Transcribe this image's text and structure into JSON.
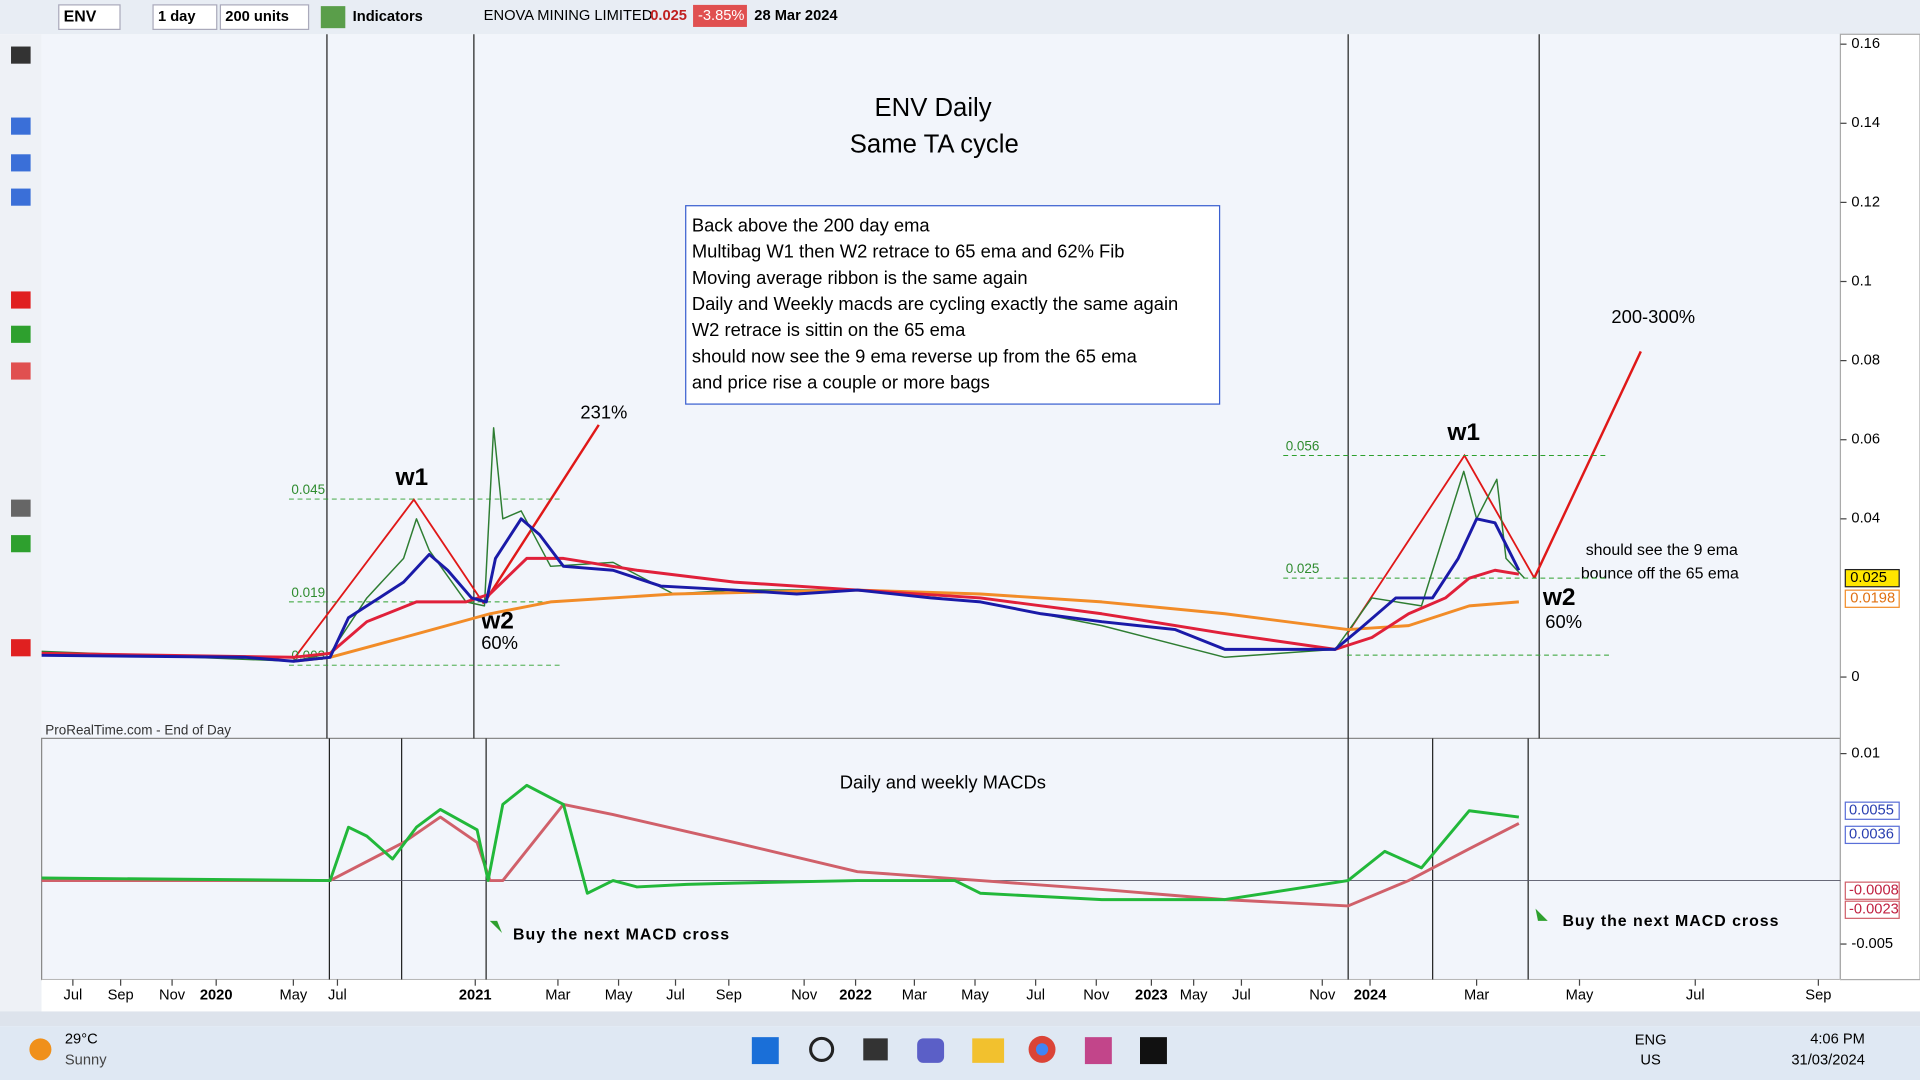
{
  "toolbar": {
    "symbol": "ENV",
    "timeframe": "1 day",
    "units": "200 units",
    "indicators": "Indicators",
    "name": "ENOVA MINING LIMITED",
    "price": "0.025",
    "change": "-3.85%",
    "date": "28 Mar 2024"
  },
  "watermark": "ProRealTime.com - End of Day",
  "chart_data": [
    {
      "type": "line",
      "title": "ENV Daily",
      "subtitle": "Same TA cycle",
      "xlim": [
        0,
        979
      ],
      "xticks": [
        {
          "value": 17,
          "label": "Jul"
        },
        {
          "value": 43,
          "label": "Sep"
        },
        {
          "value": 71,
          "label": "Nov"
        },
        {
          "value": 95,
          "label": "2020"
        },
        {
          "value": 137,
          "label": "May"
        },
        {
          "value": 161,
          "label": "Jul"
        },
        {
          "value": 236,
          "label": "2021"
        },
        {
          "value": 281,
          "label": "Mar"
        },
        {
          "value": 314,
          "label": "May"
        },
        {
          "value": 345,
          "label": "Jul"
        },
        {
          "value": 374,
          "label": "Sep"
        },
        {
          "value": 415,
          "label": "Nov"
        },
        {
          "value": 443,
          "label": "2022"
        },
        {
          "value": 475,
          "label": "Mar"
        },
        {
          "value": 508,
          "label": "May"
        },
        {
          "value": 541,
          "label": "Jul"
        },
        {
          "value": 574,
          "label": "Nov"
        },
        {
          "value": 604,
          "label": "2023"
        },
        {
          "value": 627,
          "label": "May"
        },
        {
          "value": 653,
          "label": "Jul"
        },
        {
          "value": 697,
          "label": "Nov"
        },
        {
          "value": 723,
          "label": "2024"
        },
        {
          "value": 781,
          "label": "Mar"
        },
        {
          "value": 837,
          "label": "May"
        },
        {
          "value": 900,
          "label": "Jul"
        },
        {
          "value": 967,
          "label": "Sep"
        }
      ],
      "ylim": [
        -0.0155,
        0.1625
      ],
      "yticks": [
        0,
        0.04,
        0.06,
        0.08,
        0.1,
        0.12,
        0.14,
        0.16
      ],
      "series": [
        {
          "color": "#2e7d32",
          "x": [
            0,
            137,
            157,
            177,
            197,
            204,
            211,
            231,
            241,
            246,
            251,
            261,
            277,
            311,
            344,
            377,
            444,
            511,
            577,
            644,
            704,
            724,
            751,
            774,
            781,
            792,
            797,
            807
          ],
          "values": [
            0.0065,
            0.004,
            0.006,
            0.02,
            0.03,
            0.04,
            0.032,
            0.019,
            0.018,
            0.063,
            0.04,
            0.042,
            0.028,
            0.029,
            0.021,
            0.022,
            0.022,
            0.019,
            0.013,
            0.005,
            0.007,
            0.02,
            0.018,
            0.052,
            0.04,
            0.05,
            0.03,
            0.025
          ]
        },
        {
          "color": "#f28c28",
          "x": [
            137,
            157,
            197,
            244,
            277,
            344,
            444,
            511,
            577,
            644,
            711,
            744,
            777,
            804
          ],
          "values": [
            0.004,
            0.005,
            0.01,
            0.016,
            0.019,
            0.021,
            0.022,
            0.021,
            0.019,
            0.016,
            0.012,
            0.013,
            0.018,
            0.019
          ]
        },
        {
          "color": "#e0203a",
          "x": [
            0,
            137,
            157,
            177,
            204,
            231,
            244,
            264,
            284,
            324,
            377,
            444,
            511,
            577,
            644,
            704,
            724,
            744,
            764,
            777,
            791,
            804
          ],
          "values": [
            0.006,
            0.005,
            0.006,
            0.014,
            0.019,
            0.019,
            0.021,
            0.03,
            0.03,
            0.027,
            0.024,
            0.022,
            0.02,
            0.016,
            0.011,
            0.007,
            0.01,
            0.016,
            0.02,
            0.025,
            0.027,
            0.026
          ]
        },
        {
          "color": "#1a1aa8",
          "x": [
            0,
            111,
            137,
            157,
            167,
            177,
            197,
            211,
            221,
            234,
            242,
            247,
            261,
            271,
            284,
            311,
            337,
            377,
            411,
            444,
            484,
            511,
            544,
            577,
            617,
            644,
            677,
            704,
            717,
            737,
            757,
            771,
            781,
            791,
            804
          ],
          "values": [
            0.0055,
            0.005,
            0.004,
            0.005,
            0.015,
            0.018,
            0.024,
            0.031,
            0.027,
            0.02,
            0.019,
            0.03,
            0.04,
            0.036,
            0.028,
            0.027,
            0.023,
            0.022,
            0.021,
            0.022,
            0.02,
            0.019,
            0.016,
            0.014,
            0.012,
            0.007,
            0.007,
            0.007,
            0.012,
            0.02,
            0.02,
            0.03,
            0.04,
            0.039,
            0.027
          ]
        }
      ],
      "fib_levels": [
        {
          "value": 0.045,
          "label": "0.045"
        },
        {
          "value": 0.019,
          "label": "0.019"
        },
        {
          "value": 0.003,
          "label": "0.003"
        },
        {
          "value": 0.056,
          "label": "0.056"
        },
        {
          "value": 0.025,
          "label": "0.025"
        }
      ],
      "price_labels": [
        {
          "value": 0.025,
          "label": "0.025"
        },
        {
          "value": 0.0198,
          "label": "0.0198"
        }
      ],
      "note_box": [
        "Back above the 200 day ema",
        "Multibag W1 then W2 retrace to 65 ema and 62% Fib",
        "Moving average ribbon is the same again",
        "Daily and Weekly macds are cycling exactly the same again",
        "W2 retrace is sittin on the 65 ema",
        "should now see the 9 ema reverse up from the 65 ema",
        "and price rise a couple or more bags"
      ],
      "annotations": {
        "gain_left": "231%",
        "gain_right": "200-300%",
        "w1_left": "w1",
        "w2_left": "w2",
        "pct_left": "60%",
        "w1_right": "w1",
        "w2_right": "w2",
        "pct_right": "60%",
        "note_right_1": "should see the 9 ema",
        "note_right_2": "bounce off the 65 ema"
      }
    },
    {
      "type": "line",
      "title": "Daily and weekly MACDs",
      "xlim": [
        0,
        979
      ],
      "ylim": [
        -0.0078,
        0.0112
      ],
      "yticks": [
        0.01,
        -0.005
      ],
      "markers": [
        {
          "value": 0.0055,
          "label": "0.0055"
        },
        {
          "value": 0.0036,
          "label": "0.0036"
        },
        {
          "value": -0.0008,
          "label": "-0.0008"
        },
        {
          "value": -0.0023,
          "label": "-0.0023"
        }
      ],
      "series": [
        {
          "color": "#d0606a",
          "x": [
            0,
            157,
            197,
            217,
            237,
            244,
            251,
            284,
            311,
            377,
            444,
            511,
            577,
            644,
            711,
            744,
            777,
            804
          ],
          "values": [
            0,
            0,
            0.003,
            0.005,
            0.003,
            0,
            0,
            0.006,
            0.0052,
            0.003,
            0.0007,
            0,
            -0.0007,
            -0.0015,
            -0.002,
            0,
            0.0025,
            0.0045
          ]
        },
        {
          "color": "#22b83a",
          "x": [
            0,
            157,
            167,
            177,
            191,
            204,
            217,
            237,
            243,
            251,
            264,
            284,
            297,
            311,
            324,
            351,
            377,
            444,
            497,
            511,
            577,
            644,
            711,
            731,
            751,
            777,
            804
          ],
          "values": [
            0.0002,
            0,
            0.0042,
            0.0035,
            0.0017,
            0.0042,
            0.0056,
            0.004,
            0,
            0.006,
            0.0075,
            0.006,
            -0.001,
            0,
            -0.0005,
            -0.0003,
            -0.0002,
            0,
            0,
            -0.001,
            -0.0015,
            -0.0015,
            0,
            0.0023,
            0.001,
            0.0055,
            0.005
          ]
        }
      ],
      "annotations": {
        "buy_left": "Buy the next MACD cross",
        "buy_right": "Buy the next MACD cross"
      }
    }
  ],
  "taskbar": {
    "temp": "29°C",
    "weather": "Sunny",
    "lang": "ENG",
    "region": "US",
    "time": "4:06 PM",
    "date": "31/03/2024"
  }
}
